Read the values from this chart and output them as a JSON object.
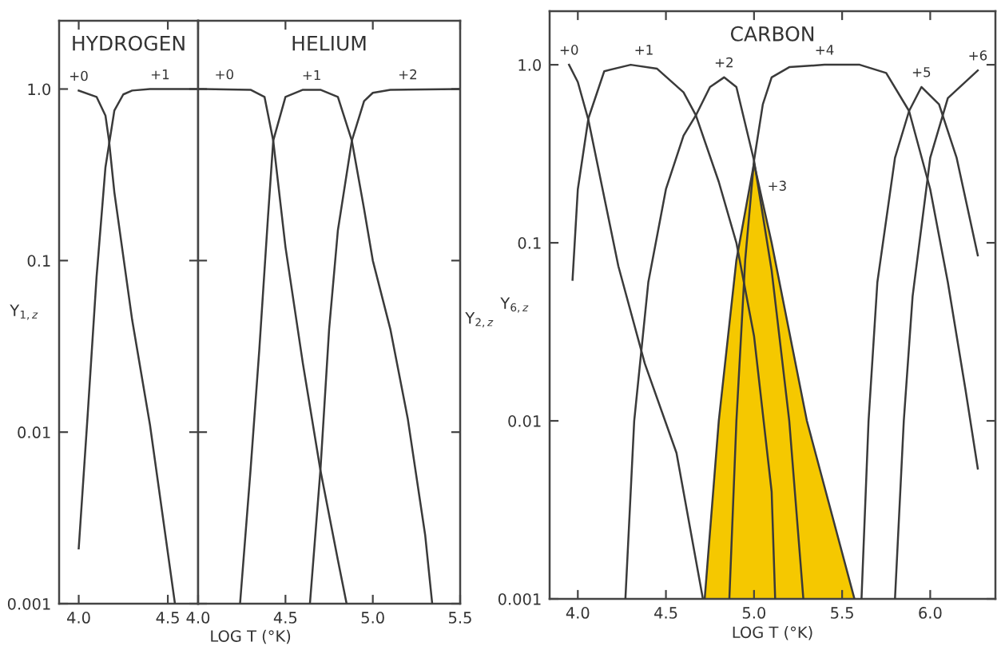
{
  "chart_data": [
    {
      "type": "line",
      "title": "HYDROGEN",
      "ylabel": "Y$_{1,z}$",
      "log": "y",
      "grid": false,
      "legend": false,
      "xlim": [
        3.89,
        4.67
      ],
      "xticks": [
        {
          "value": 4.0,
          "label": "4.0"
        },
        {
          "value": 4.5,
          "label": "4.5"
        }
      ],
      "ylim": [
        0.001,
        2.5
      ],
      "yticks": [
        {
          "value": 0.001,
          "label": "0.001"
        },
        {
          "value": 0.01,
          "label": "0.01"
        },
        {
          "value": 0.1,
          "label": "0.1"
        },
        {
          "value": 1.0,
          "label": "1.0"
        }
      ],
      "series": [
        {
          "name": "+0",
          "color": "#3a3a3a",
          "x": [
            4.0,
            4.1,
            4.15,
            4.17,
            4.2,
            4.3,
            4.4,
            4.54
          ],
          "values": [
            0.98,
            0.9,
            0.7,
            0.5,
            0.25,
            0.045,
            0.011,
            0.001
          ]
        },
        {
          "name": "+1",
          "color": "#3a3a3a",
          "x": [
            4.0,
            4.05,
            4.1,
            4.15,
            4.2,
            4.25,
            4.3,
            4.4,
            4.67
          ],
          "values": [
            0.0021,
            0.0125,
            0.08,
            0.35,
            0.75,
            0.93,
            0.98,
            1.0,
            1.0
          ]
        }
      ]
    },
    {
      "type": "line",
      "title": "HELIUM",
      "ylabel": "Y$_{2,z}$",
      "xlabel": "LOG T (°K)",
      "log": "y",
      "grid": false,
      "legend": false,
      "tick_labels": "x",
      "xlim": [
        4.0,
        5.5
      ],
      "xticks": [
        {
          "value": 4.0,
          "label": "4.0"
        },
        {
          "value": 4.5,
          "label": "4.5"
        },
        {
          "value": 5.0,
          "label": "5.0"
        },
        {
          "value": 5.5,
          "label": "5.5"
        }
      ],
      "ylim": [
        0.001,
        2.5
      ],
      "yticks": [
        {
          "value": 0.001,
          "label": null
        },
        {
          "value": 0.01,
          "label": null
        },
        {
          "value": 0.1,
          "label": null
        },
        {
          "value": 1.0,
          "label": null
        }
      ],
      "series": [
        {
          "name": "+0",
          "color": "#3a3a3a",
          "x": [
            4.0,
            4.3,
            4.38,
            4.43,
            4.5,
            4.6,
            4.7,
            4.8,
            4.85
          ],
          "values": [
            1.0,
            0.99,
            0.9,
            0.5,
            0.12,
            0.025,
            0.006,
            0.0018,
            0.001
          ]
        },
        {
          "name": "+1",
          "color": "#3a3a3a",
          "x": [
            4.24,
            4.3,
            4.35,
            4.4,
            4.43,
            4.5,
            4.6,
            4.7,
            4.8,
            4.88,
            4.95,
            5.0,
            5.1,
            5.2,
            5.3,
            5.34
          ],
          "values": [
            0.001,
            0.006,
            0.03,
            0.18,
            0.5,
            0.9,
            0.99,
            0.99,
            0.9,
            0.5,
            0.2,
            0.1,
            0.04,
            0.012,
            0.0025,
            0.001
          ]
        },
        {
          "name": "+2",
          "color": "#3a3a3a",
          "x": [
            4.64,
            4.7,
            4.75,
            4.8,
            4.88,
            4.95,
            5.0,
            5.1,
            5.5
          ],
          "values": [
            0.001,
            0.006,
            0.04,
            0.15,
            0.5,
            0.85,
            0.95,
            0.99,
            1.0
          ]
        }
      ]
    },
    {
      "type": "line",
      "title": "CARBON",
      "ylabel": "Y$_{6,z}$",
      "xlabel": "LOG T (°K)",
      "log": "y",
      "grid": false,
      "legend": false,
      "xlim": [
        3.84,
        6.37
      ],
      "xticks": [
        {
          "value": 4.0,
          "label": "4.0"
        },
        {
          "value": 4.5,
          "label": "4.5"
        },
        {
          "value": 5.0,
          "label": "5.0"
        },
        {
          "value": 5.5,
          "label": "5.5"
        },
        {
          "value": 6.0,
          "label": "6.0"
        }
      ],
      "ylim": [
        0.001,
        2.0
      ],
      "yticks": [
        {
          "value": 0.001,
          "label": "0.001"
        },
        {
          "value": 0.01,
          "label": "0.01"
        },
        {
          "value": 0.1,
          "label": "0.1"
        },
        {
          "value": 1.0,
          "label": "1.0"
        }
      ],
      "series": [
        {
          "name": "+3",
          "type": "area",
          "color": "#f5c800",
          "x": [
            4.72,
            4.8,
            4.9,
            5.0,
            5.1,
            5.3,
            5.57
          ],
          "values": [
            0.001,
            0.01,
            0.08,
            0.28,
            0.1,
            0.01,
            0.001
          ]
        },
        {
          "name": "+0",
          "color": "#3a3a3a",
          "x": [
            3.95,
            4.0,
            4.06,
            4.23,
            4.38,
            4.56,
            4.71
          ],
          "values": [
            1.0,
            0.8,
            0.49,
            0.074,
            0.021,
            0.0066,
            0.001
          ]
        },
        {
          "name": "+1",
          "color": "#3a3a3a",
          "x": [
            3.97,
            4.0,
            4.06,
            4.15,
            4.3,
            4.45,
            4.6,
            4.67,
            4.8,
            4.9,
            5.0,
            5.1,
            5.12
          ],
          "values": [
            0.062,
            0.2,
            0.5,
            0.92,
            1.0,
            0.95,
            0.7,
            0.52,
            0.22,
            0.1,
            0.03,
            0.004,
            0.001
          ]
        },
        {
          "name": "+2",
          "color": "#3a3a3a",
          "x": [
            4.27,
            4.32,
            4.4,
            4.5,
            4.6,
            4.67,
            4.75,
            4.83,
            4.9,
            5.0,
            5.1,
            5.2,
            5.28
          ],
          "values": [
            0.001,
            0.01,
            0.06,
            0.2,
            0.4,
            0.52,
            0.75,
            0.85,
            0.75,
            0.29,
            0.07,
            0.01,
            0.001
          ]
        },
        {
          "name": "+4",
          "color": "#3a3a3a",
          "x": [
            4.86,
            4.9,
            4.95,
            5.0,
            5.05,
            5.1,
            5.2,
            5.4,
            5.6,
            5.75,
            5.88,
            6.0,
            6.1,
            6.2,
            6.27
          ],
          "values": [
            0.001,
            0.01,
            0.08,
            0.29,
            0.6,
            0.85,
            0.97,
            1.0,
            1.0,
            0.9,
            0.55,
            0.2,
            0.06,
            0.015,
            0.0054
          ]
        },
        {
          "name": "+5",
          "color": "#3a3a3a",
          "x": [
            5.61,
            5.65,
            5.7,
            5.8,
            5.88,
            5.95,
            6.05,
            6.15,
            6.27
          ],
          "values": [
            0.001,
            0.01,
            0.06,
            0.3,
            0.55,
            0.75,
            0.6,
            0.3,
            0.085
          ]
        },
        {
          "name": "+6",
          "color": "#3a3a3a",
          "x": [
            5.8,
            5.85,
            5.9,
            6.0,
            6.1,
            6.27
          ],
          "values": [
            0.001,
            0.01,
            0.05,
            0.3,
            0.65,
            0.93
          ]
        }
      ]
    }
  ]
}
